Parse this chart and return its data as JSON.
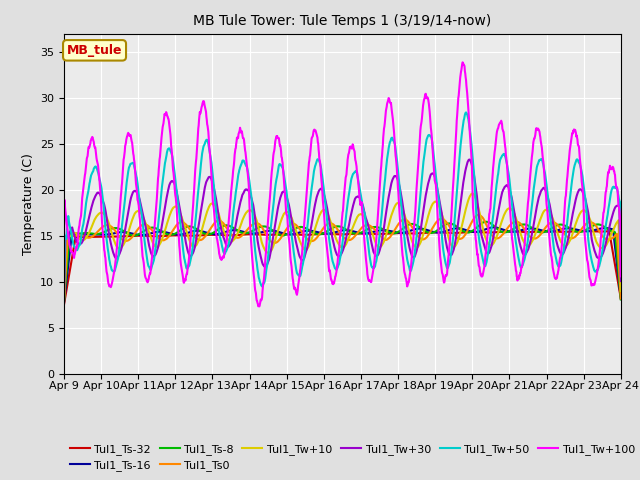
{
  "title": "MB Tule Tower: Tule Temps 1 (3/19/14-now)",
  "ylabel": "Temperature (C)",
  "ylim": [
    0,
    37
  ],
  "yticks": [
    0,
    5,
    10,
    15,
    20,
    25,
    30,
    35
  ],
  "x_labels": [
    "Apr 9",
    "Apr 10",
    "Apr 11",
    "Apr 12",
    "Apr 13",
    "Apr 14",
    "Apr 15",
    "Apr 16",
    "Apr 17",
    "Apr 18",
    "Apr 19",
    "Apr 20",
    "Apr 21",
    "Apr 22",
    "Apr 23",
    "Apr 24"
  ],
  "annotation_label": "MB_tule",
  "series": [
    {
      "name": "Tul1_Ts-32",
      "color": "#cc0000",
      "lw": 1.5
    },
    {
      "name": "Tul1_Ts-16",
      "color": "#000099",
      "lw": 1.5
    },
    {
      "name": "Tul1_Ts-8",
      "color": "#00bb00",
      "lw": 1.5
    },
    {
      "name": "Tul1_Ts0",
      "color": "#ff8800",
      "lw": 1.5
    },
    {
      "name": "Tul1_Tw+10",
      "color": "#ddcc00",
      "lw": 1.5
    },
    {
      "name": "Tul1_Tw+30",
      "color": "#9900cc",
      "lw": 1.5
    },
    {
      "name": "Tul1_Tw+50",
      "color": "#00cccc",
      "lw": 1.5
    },
    {
      "name": "Tul1_Tw+100",
      "color": "#ff00ff",
      "lw": 1.5
    }
  ],
  "bg_color": "#e0e0e0",
  "plot_bg": "#ebebeb",
  "n_days": 15,
  "base_temp": 15.0,
  "daily_peaks": [
    25.5,
    26.2,
    28.3,
    29.6,
    26.6,
    25.9,
    26.5,
    24.9,
    29.8,
    30.3,
    33.5,
    27.4,
    26.7,
    26.6,
    22.5
  ],
  "daily_mins": [
    13.0,
    9.5,
    10.1,
    10.2,
    12.5,
    7.5,
    9.0,
    10.0,
    10.0,
    9.9,
    10.0,
    11.0,
    10.5,
    10.5,
    9.7
  ]
}
